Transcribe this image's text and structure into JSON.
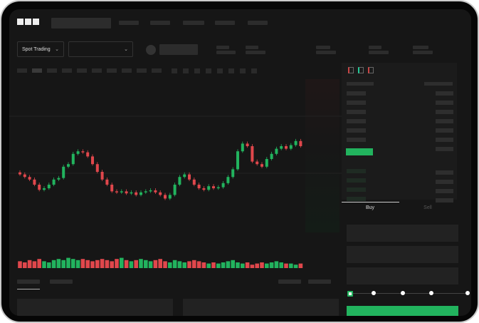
{
  "header": {
    "logo": "OKX"
  },
  "toolbar": {
    "market_type": "Spot Trading",
    "pair_select": ""
  },
  "order_form": {
    "tabs": [
      "Buy",
      "Sell"
    ],
    "active_tab": "Buy",
    "leverage_steps": 5,
    "selected_step": 0
  },
  "colors": {
    "up": "#22b35e",
    "down": "#e0474c",
    "background": "#161616",
    "accent": "#22b35e"
  },
  "icons": {
    "dropdown": "chevron-down-icon",
    "orderbook_views": [
      "orderbook-both-icon",
      "orderbook-bids-icon",
      "orderbook-asks-icon"
    ]
  },
  "chart_data": {
    "type": "candlestick",
    "closes": [
      95,
      90,
      85,
      75,
      65,
      68,
      75,
      85,
      88,
      110,
      115,
      135,
      140,
      138,
      130,
      115,
      100,
      85,
      75,
      62,
      60,
      62,
      58,
      60,
      55,
      60,
      62,
      64,
      60,
      55,
      48,
      55,
      75,
      90,
      95,
      85,
      75,
      68,
      65,
      72,
      68,
      70,
      78,
      90,
      105,
      140,
      155,
      150,
      120,
      115,
      110,
      125,
      135,
      145,
      150,
      145,
      152,
      160,
      150
    ],
    "volume": [
      6,
      5,
      7,
      6,
      8,
      6,
      5,
      7,
      8,
      7,
      9,
      8,
      7,
      8,
      7,
      6,
      7,
      8,
      7,
      6,
      8,
      9,
      7,
      6,
      7,
      8,
      7,
      6,
      7,
      8,
      6,
      5,
      7,
      6,
      5,
      6,
      7,
      6,
      5,
      4,
      5,
      4,
      5,
      6,
      7,
      5,
      4,
      5,
      3,
      4,
      5,
      4,
      5,
      6,
      5,
      4,
      4,
      3,
      4
    ]
  }
}
